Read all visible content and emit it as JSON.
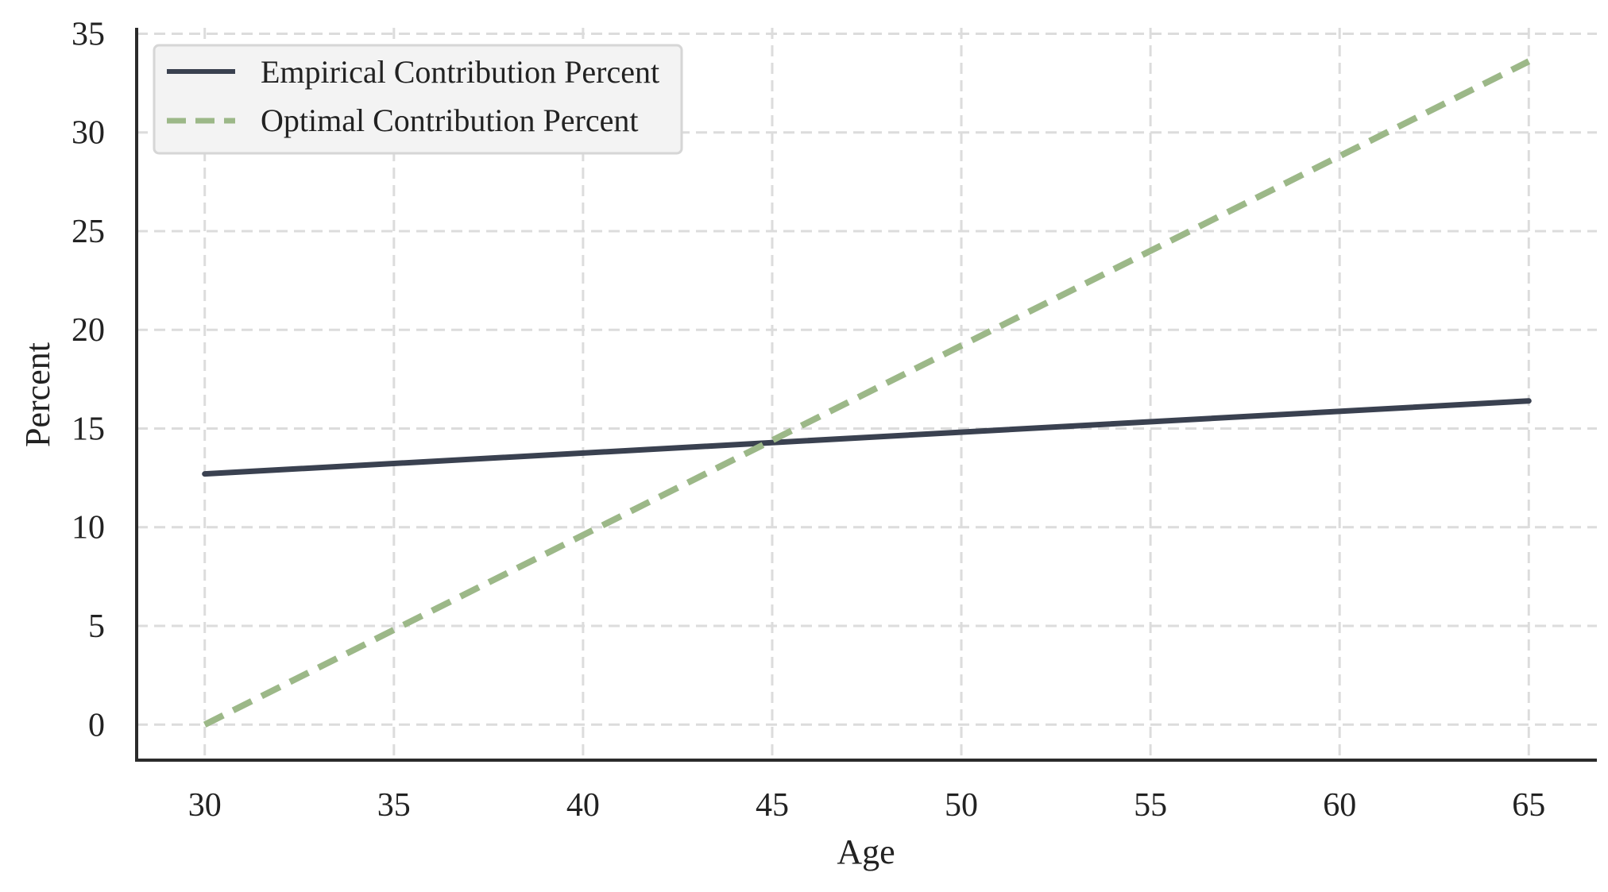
{
  "chart_data": {
    "type": "line",
    "xlabel": "Age",
    "ylabel": "Percent",
    "xlim": [
      28.2,
      66.8
    ],
    "ylim": [
      -1.8,
      35.3
    ],
    "xticks": [
      30,
      35,
      40,
      45,
      50,
      55,
      60,
      65
    ],
    "yticks": [
      0,
      5,
      10,
      15,
      20,
      25,
      30,
      35
    ],
    "grid": true,
    "legend_position": "top-left",
    "series": [
      {
        "name": "Empirical Contribution Percent",
        "x": [
          30,
          65
        ],
        "y": [
          12.7,
          16.4
        ],
        "color": "#3a4150",
        "style": "solid"
      },
      {
        "name": "Optimal Contribution Percent",
        "x": [
          30,
          65
        ],
        "y": [
          0.0,
          33.6
        ],
        "color": "#9cb888",
        "style": "dashed"
      }
    ]
  }
}
